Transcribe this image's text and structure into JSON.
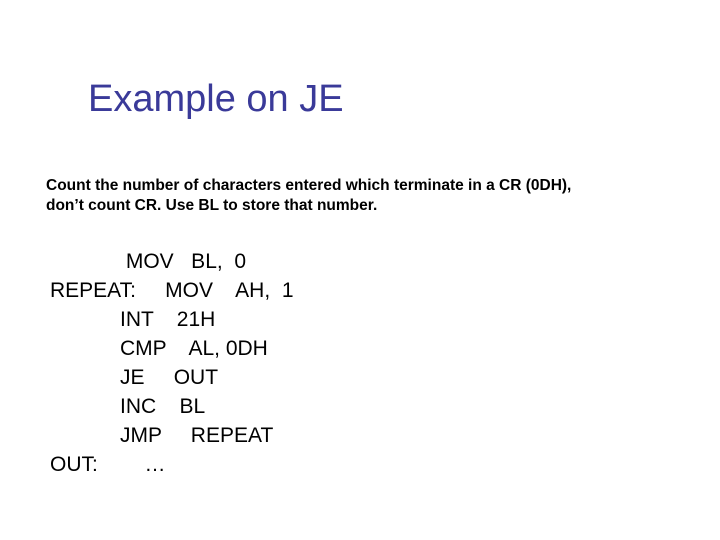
{
  "slide": {
    "title": "Example on JE",
    "title_color": "#3a3a99",
    "title_fontsize": 38,
    "subtitle_line1": "Count the number of characters entered which terminate in a CR (0DH),",
    "subtitle_line2": " don’t count CR.  Use BL to store that number.",
    "subtitle_fontsize": 15.5,
    "code": {
      "lines": [
        {
          "label": "",
          "mnemonic": " MOV",
          "operands": "BL,  0"
        },
        {
          "label": "REPEAT:",
          "mnemonic": "MOV",
          "operands": "AH,  1"
        },
        {
          "label": "",
          "mnemonic": "INT",
          "operands": "21H"
        },
        {
          "label": "",
          "mnemonic": "CMP",
          "operands": "AL, 0DH"
        },
        {
          "label": "",
          "mnemonic": "JE",
          "operands": "OUT"
        },
        {
          "label": "",
          "mnemonic": "INC",
          "operands": "BL"
        },
        {
          "label": "",
          "mnemonic": "JMP",
          "operands": " REPEAT"
        },
        {
          "label": "OUT:",
          "mnemonic": "…",
          "operands": ""
        }
      ],
      "label_col_width": 12,
      "mnemonic_col_width": 7,
      "fontsize": 21
    },
    "background_color": "#ffffff",
    "text_color": "#000000"
  }
}
